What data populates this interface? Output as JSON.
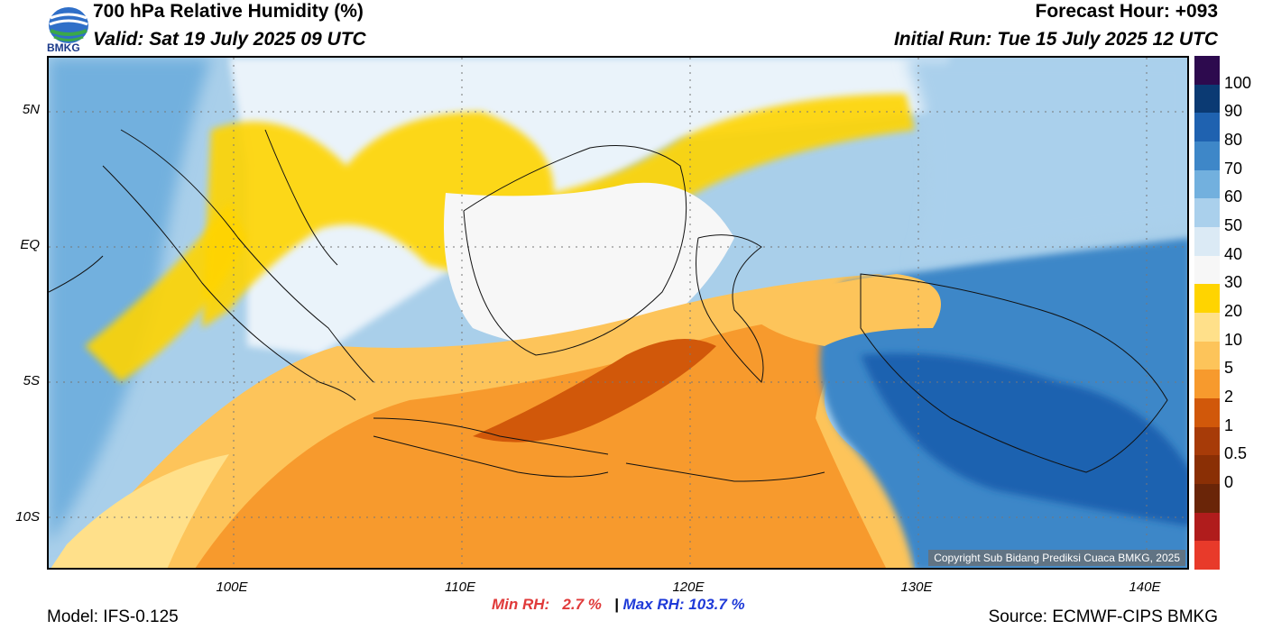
{
  "header": {
    "title": "700 hPa Relative Humidity (%)",
    "valid": "Valid: Sat 19 July 2025 09 UTC",
    "forecast_hour": "Forecast Hour: +093",
    "initial_run": "Initial Run: Tue 15 July 2025 12 UTC"
  },
  "logo": {
    "text": "BMKG"
  },
  "map": {
    "lat_labels": [
      "5N",
      "EQ",
      "5S",
      "10S"
    ],
    "lon_labels": [
      "100E",
      "110E",
      "120E",
      "130E",
      "140E"
    ],
    "copyright": "Copyright Sub Bidang Prediksi Cuaca BMKG, 2025",
    "colors": {
      "ocean_moist": "#9ecae1",
      "land_boundary": "#000000",
      "dry_core": "#c94a0b"
    }
  },
  "colorbar": {
    "labels": [
      "100",
      "90",
      "80",
      "70",
      "60",
      "50",
      "40",
      "30",
      "20",
      "10",
      "5",
      "2",
      "1",
      "0.5",
      "0"
    ],
    "colors": [
      "#2d0a4e",
      "#0b3a73",
      "#1f62b0",
      "#3e87c8",
      "#72b0de",
      "#aad0ec",
      "#dbeaf5",
      "#f7f7f7",
      "#ffd400",
      "#ffe08a",
      "#fdc45a",
      "#f79a2d",
      "#d1580a",
      "#a73b08",
      "#8a2f05",
      "#6a2508",
      "#b01c1c",
      "#e83a2a"
    ]
  },
  "stats": {
    "min_label": "Min RH:",
    "min_value": "2.7 %",
    "separator": "|",
    "max_label": "Max RH:",
    "max_value": "103.7 %"
  },
  "footer": {
    "model": "Model: IFS-0.125",
    "source": "Source: ECMWF-CIPS BMKG"
  }
}
